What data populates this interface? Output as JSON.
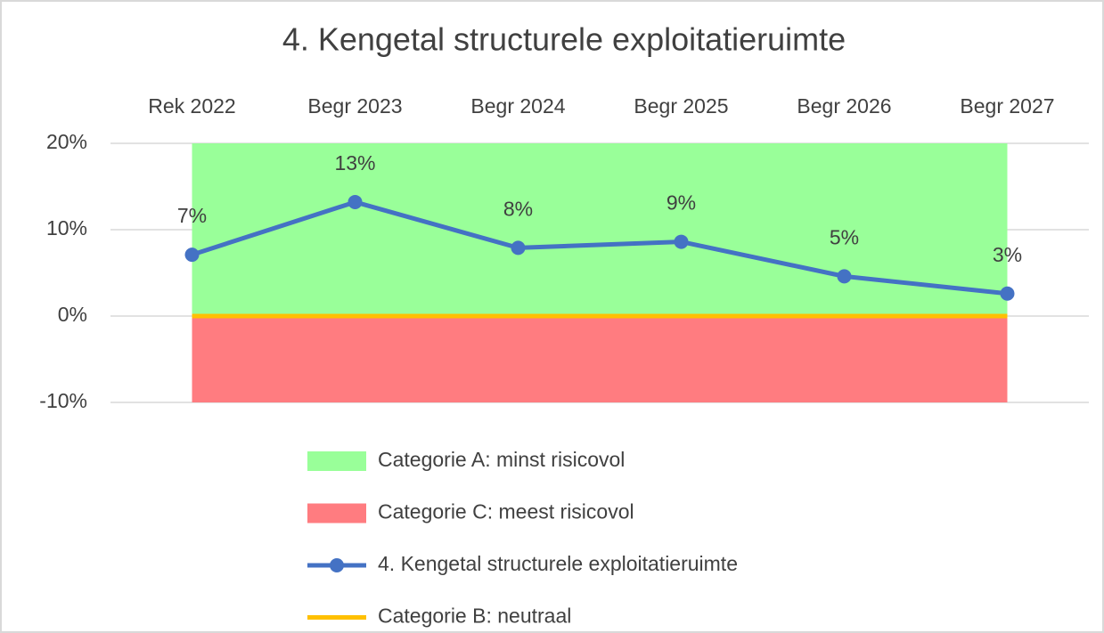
{
  "chart_data": {
    "type": "line",
    "title": "4. Kengetal structurele exploitatieruimte",
    "categories": [
      "Rek 2022",
      "Begr 2023",
      "Begr 2024",
      "Begr 2025",
      "Begr 2026",
      "Begr 2027"
    ],
    "ylim": [
      -10,
      20
    ],
    "yticks": [
      {
        "value": -10,
        "label": "-10%"
      },
      {
        "value": 0,
        "label": "0%"
      },
      {
        "value": 10,
        "label": "10%"
      },
      {
        "value": 20,
        "label": "20%"
      }
    ],
    "grid": true,
    "legend": "bottom",
    "series": [
      {
        "name": "Categorie A: minst risicovol",
        "kind": "area",
        "color": "#99ff99",
        "values": [
          20,
          20,
          20,
          20,
          20,
          20
        ]
      },
      {
        "name": "Categorie C: meest risicovol",
        "kind": "area",
        "color": "#ff7c80",
        "values": [
          -10,
          -10,
          -10,
          -10,
          -10,
          -10
        ]
      },
      {
        "name": "4. Kengetal structurele exploitatieruimte",
        "kind": "line",
        "color": "#4472c4",
        "values": [
          7.1,
          13.2,
          7.9,
          8.6,
          4.6,
          2.6
        ],
        "value_labels": [
          "7%",
          "13%",
          "8%",
          "9%",
          "5%",
          "3%"
        ]
      },
      {
        "name": "Categorie B: neutraal",
        "kind": "flat",
        "color": "#ffc000",
        "values": [
          0,
          0,
          0,
          0,
          0,
          0
        ]
      }
    ]
  }
}
